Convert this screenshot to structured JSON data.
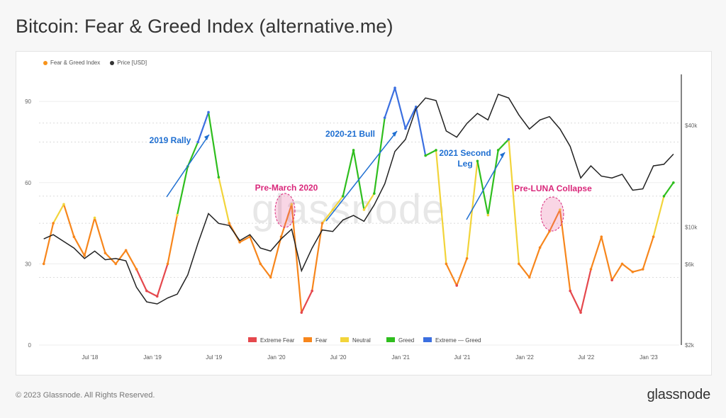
{
  "page": {
    "title": "Bitcoin: Fear & Greed Index (alternative.me)",
    "copyright": "© 2023 Glassnode. All Rights Reserved.",
    "brand": "glassnode",
    "watermark": "glassnode"
  },
  "legend_top": [
    {
      "label": "Fear & Greed Index",
      "color": "#f7931a"
    },
    {
      "label": "Price [USD]",
      "color": "#333333"
    }
  ],
  "chart_data": {
    "type": "line",
    "title": "Bitcoin: Fear & Greed Index (alternative.me)",
    "x_ticks": [
      "Jul '18",
      "Jan '19",
      "Jul '19",
      "Jan '20",
      "Jul '20",
      "Jan '21",
      "Jul '21",
      "Jan '22",
      "Jul '22",
      "Jan '23"
    ],
    "left_axis": {
      "ticks": [
        "0",
        "30",
        "60",
        "90"
      ],
      "ylim": [
        0,
        100
      ]
    },
    "right_axis": {
      "ticks": [
        "$2k",
        "$6k",
        "$10k",
        "$40k"
      ],
      "scale": "log"
    },
    "bands": [
      {
        "name": "Extreme Fear",
        "color": "#e5484d"
      },
      {
        "name": "Fear",
        "color": "#f7861c"
      },
      {
        "name": "Neutral",
        "color": "#f2d43a"
      },
      {
        "name": "Greed",
        "color": "#2fbe1e"
      },
      {
        "name": "Extreme — Greed",
        "color": "#3b6fe0"
      }
    ],
    "series": [
      {
        "name": "Fear & Greed Index",
        "x": [
          "2018-02",
          "2018-03",
          "2018-04",
          "2018-05",
          "2018-06",
          "2018-07",
          "2018-08",
          "2018-09",
          "2018-10",
          "2018-11",
          "2018-12",
          "2019-01",
          "2019-02",
          "2019-03",
          "2019-04",
          "2019-05",
          "2019-06",
          "2019-07",
          "2019-08",
          "2019-09",
          "2019-10",
          "2019-11",
          "2019-12",
          "2020-01",
          "2020-02",
          "2020-03",
          "2020-04",
          "2020-05",
          "2020-06",
          "2020-07",
          "2020-08",
          "2020-09",
          "2020-10",
          "2020-11",
          "2020-12",
          "2021-01",
          "2021-02",
          "2021-03",
          "2021-04",
          "2021-05",
          "2021-06",
          "2021-07",
          "2021-08",
          "2021-09",
          "2021-10",
          "2021-11",
          "2021-12",
          "2022-01",
          "2022-02",
          "2022-03",
          "2022-04",
          "2022-05",
          "2022-06",
          "2022-07",
          "2022-08",
          "2022-09",
          "2022-10",
          "2022-11",
          "2022-12",
          "2023-01",
          "2023-02",
          "2023-03"
        ],
        "values": [
          30,
          45,
          52,
          40,
          33,
          47,
          34,
          30,
          35,
          28,
          20,
          18,
          30,
          48,
          66,
          75,
          86,
          62,
          45,
          38,
          40,
          30,
          25,
          40,
          52,
          12,
          20,
          45,
          50,
          55,
          72,
          50,
          56,
          84,
          95,
          80,
          88,
          70,
          72,
          30,
          22,
          32,
          68,
          48,
          72,
          76,
          30,
          25,
          36,
          42,
          50,
          20,
          12,
          28,
          40,
          24,
          30,
          27,
          28,
          40,
          55,
          60
        ]
      },
      {
        "name": "Price [USD]",
        "x": [
          "2018-02",
          "2018-03",
          "2018-04",
          "2018-05",
          "2018-06",
          "2018-07",
          "2018-08",
          "2018-09",
          "2018-10",
          "2018-11",
          "2018-12",
          "2019-01",
          "2019-02",
          "2019-03",
          "2019-04",
          "2019-05",
          "2019-06",
          "2019-07",
          "2019-08",
          "2019-09",
          "2019-10",
          "2019-11",
          "2019-12",
          "2020-01",
          "2020-02",
          "2020-03",
          "2020-04",
          "2020-05",
          "2020-06",
          "2020-07",
          "2020-08",
          "2020-09",
          "2020-10",
          "2020-11",
          "2020-12",
          "2021-01",
          "2021-02",
          "2021-03",
          "2021-04",
          "2021-05",
          "2021-06",
          "2021-07",
          "2021-08",
          "2021-09",
          "2021-10",
          "2021-11",
          "2021-12",
          "2022-01",
          "2022-02",
          "2022-03",
          "2022-04",
          "2022-05",
          "2022-06",
          "2022-07",
          "2022-08",
          "2022-09",
          "2022-10",
          "2022-11",
          "2022-12",
          "2023-01",
          "2023-02",
          "2023-03"
        ],
        "values": [
          8500,
          9000,
          8200,
          7500,
          6500,
          7200,
          6400,
          6500,
          6300,
          4400,
          3600,
          3500,
          3800,
          4000,
          5200,
          8000,
          12000,
          10500,
          10200,
          8300,
          9000,
          7500,
          7200,
          8500,
          9700,
          5500,
          7500,
          9600,
          9400,
          11000,
          11700,
          10800,
          13500,
          18000,
          28000,
          33000,
          50000,
          58000,
          56000,
          37000,
          34000,
          41000,
          47000,
          43000,
          61000,
          58000,
          46000,
          38000,
          43000,
          45000,
          38000,
          30000,
          19500,
          23000,
          20000,
          19500,
          20500,
          16500,
          16800,
          23000,
          23500,
          27000
        ]
      }
    ],
    "annotations": [
      {
        "label": "2019 Rally",
        "color": "#1f6fd1"
      },
      {
        "label": "Pre-March 2020",
        "color": "#d9277a"
      },
      {
        "label": "2020-21 Bull",
        "color": "#1f6fd1"
      },
      {
        "label": "2021 Second Leg",
        "color": "#1f6fd1"
      },
      {
        "label": "Pre-LUNA Collapse",
        "color": "#d9277a"
      }
    ]
  }
}
